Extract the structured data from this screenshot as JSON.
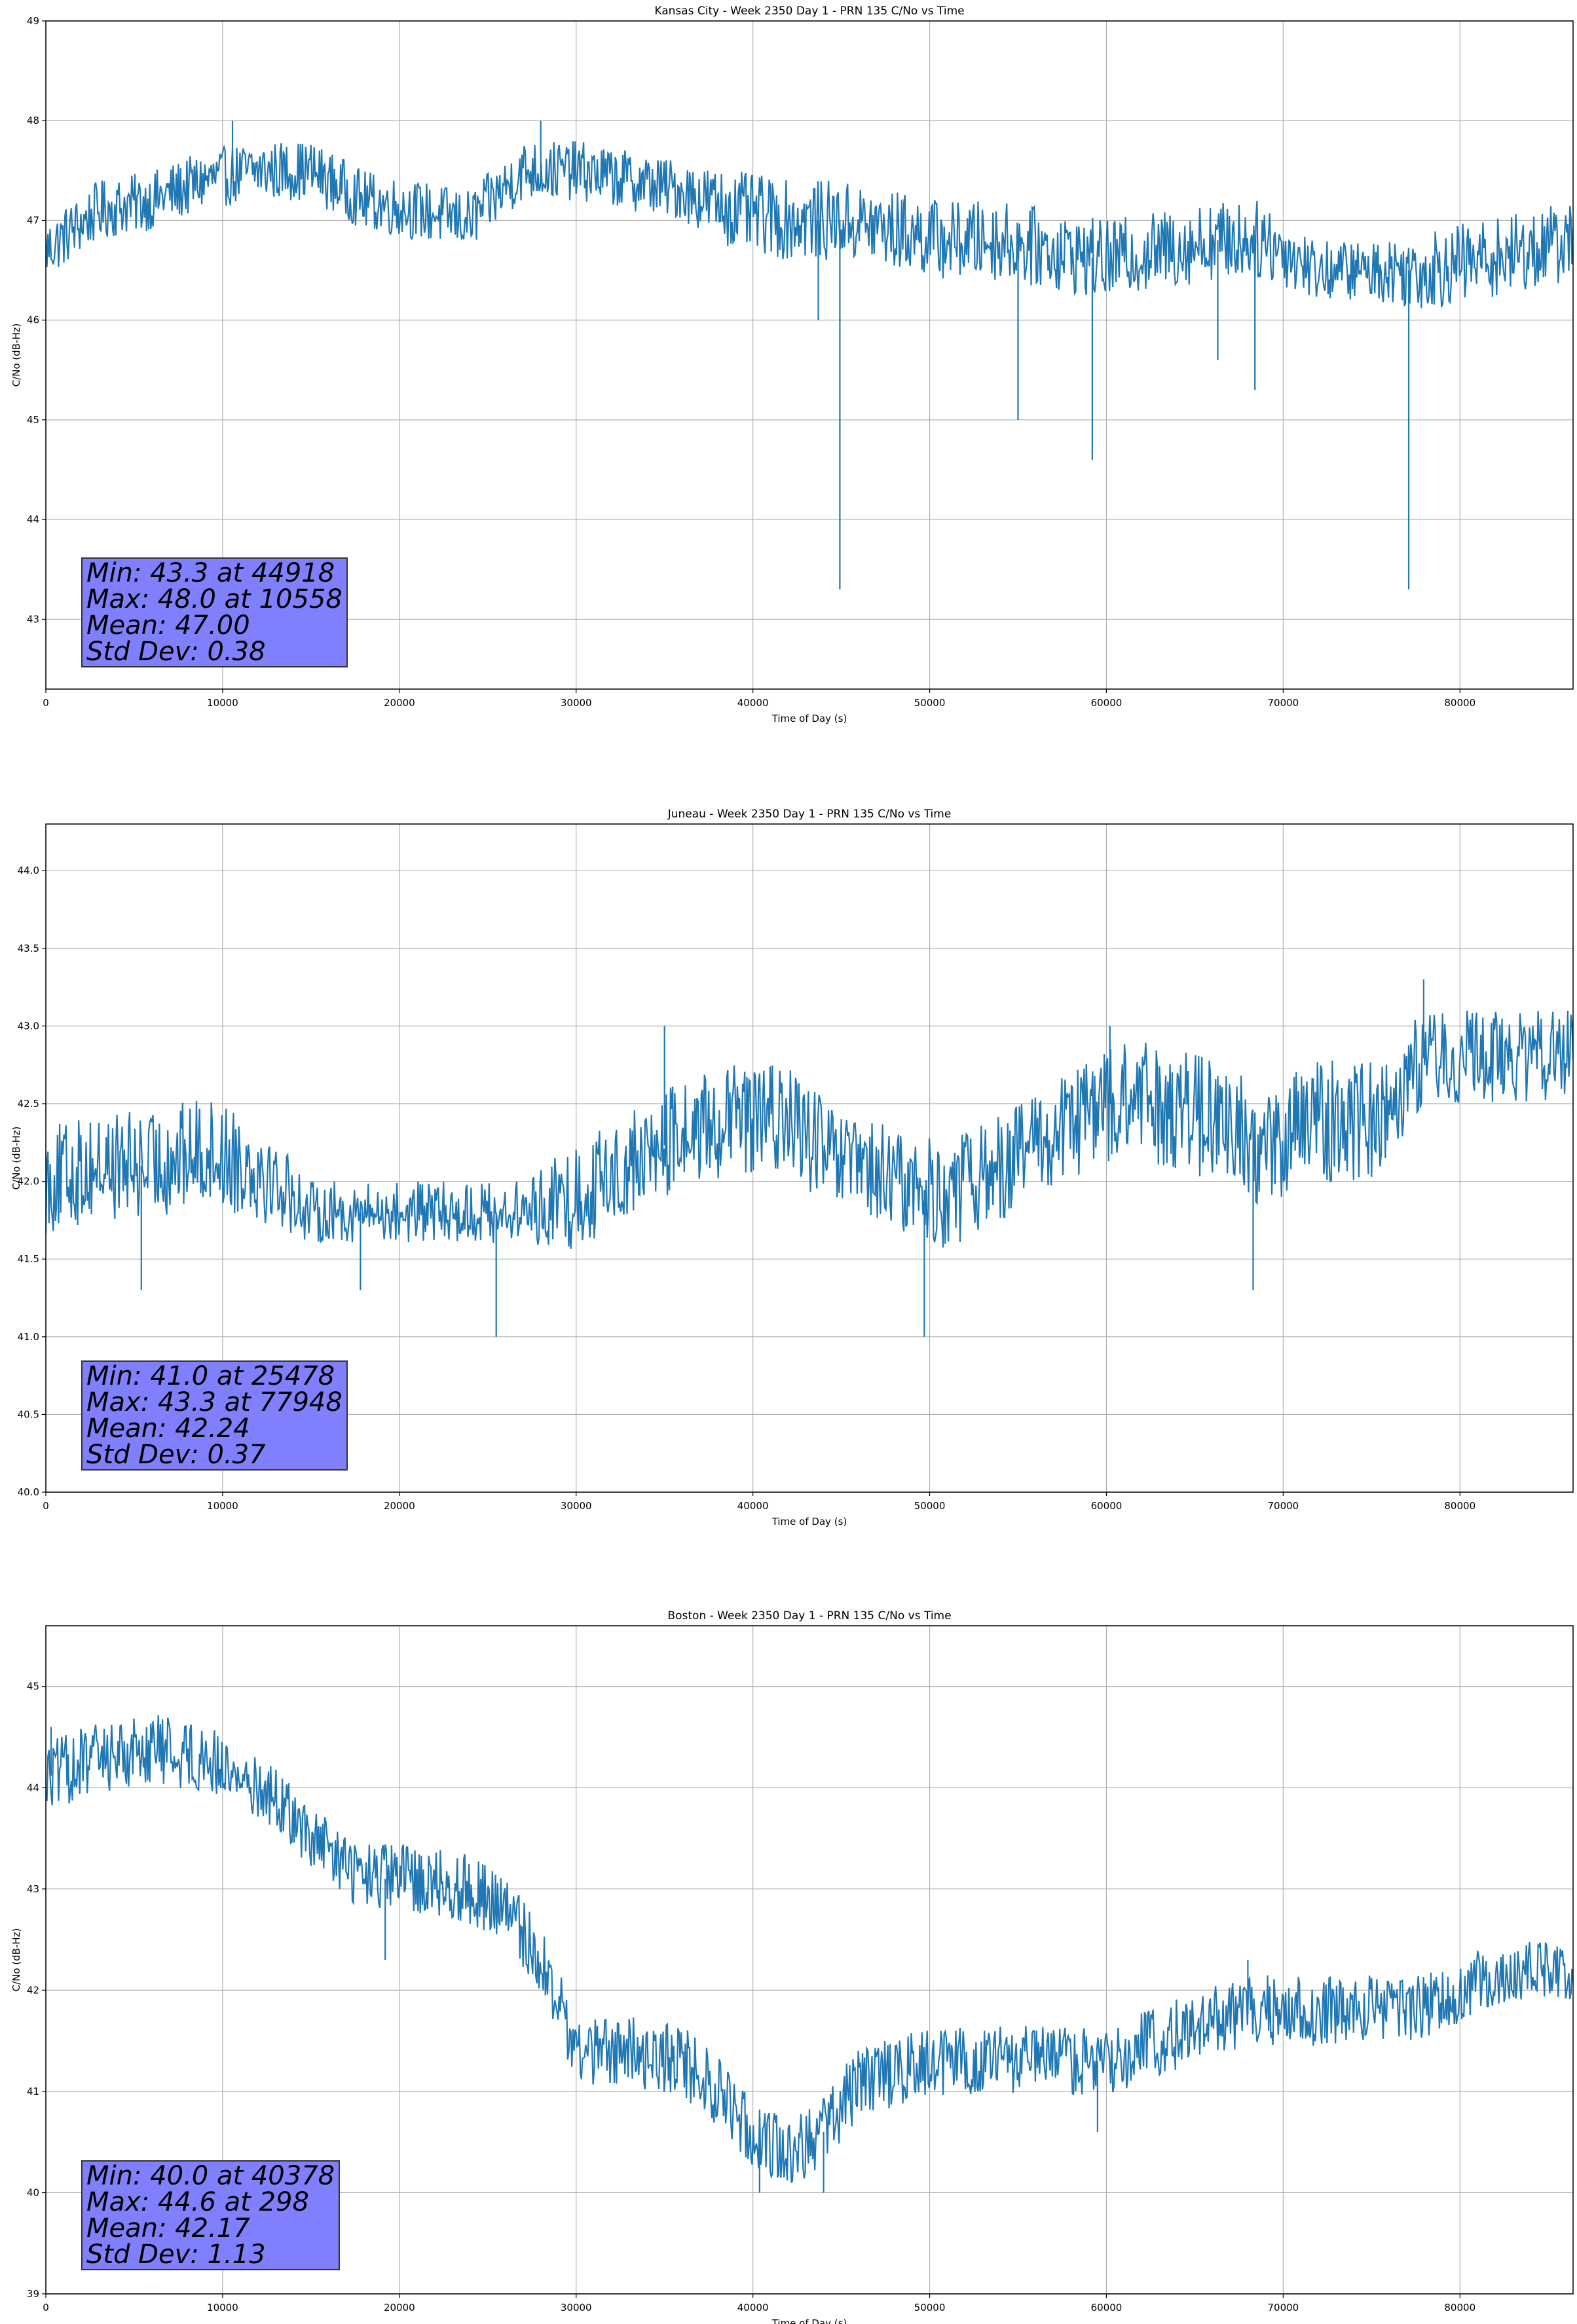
{
  "chart_data": [
    {
      "type": "line",
      "title": "Kansas City - Week 2350 Day 1 - PRN 135 C/No vs Time",
      "xlabel": "Time of Day (s)",
      "ylabel": "C/No (dB-Hz)",
      "xlim": [
        0,
        86400
      ],
      "ylim": [
        42.3,
        49.0
      ],
      "xticks": [
        0,
        10000,
        20000,
        30000,
        40000,
        50000,
        60000,
        70000,
        80000
      ],
      "yticks": [
        43,
        44,
        45,
        46,
        47,
        48,
        49
      ],
      "ytick_labels": [
        "43",
        "44",
        "45",
        "46",
        "47",
        "48",
        "49"
      ],
      "grid": true,
      "line_color": "#1f77b4",
      "stats_box_color": "#8080ff",
      "series": [
        {
          "x": [
            0,
            3000,
            6000,
            9000,
            12000,
            15000,
            18000,
            21000,
            24000,
            27000,
            30000,
            33000,
            36000,
            39000,
            42000,
            45000,
            48000,
            51000,
            54000,
            57000,
            60000,
            63000,
            66000,
            69000,
            72000,
            75000,
            78000,
            81000,
            84000,
            86400
          ],
          "base": [
            46.7,
            47.1,
            47.2,
            47.4,
            47.5,
            47.5,
            47.2,
            47.1,
            47.0,
            47.5,
            47.5,
            47.4,
            47.3,
            47.1,
            47.0,
            47.0,
            46.9,
            46.8,
            46.8,
            46.7,
            46.6,
            46.7,
            46.8,
            46.8,
            46.5,
            46.5,
            46.5,
            46.6,
            46.7,
            46.8
          ],
          "spread": [
            0.3,
            0.3,
            0.3,
            0.3,
            0.3,
            0.3,
            0.3,
            0.3,
            0.3,
            0.3,
            0.3,
            0.3,
            0.3,
            0.4,
            0.4,
            0.4,
            0.4,
            0.4,
            0.4,
            0.4,
            0.4,
            0.4,
            0.4,
            0.4,
            0.3,
            0.3,
            0.4,
            0.4,
            0.4,
            0.4
          ],
          "spikes": [
            [
              44918,
              43.3
            ],
            [
              77100,
              43.3
            ],
            [
              55000,
              45.0
            ],
            [
              59200,
              44.6
            ],
            [
              66300,
              45.6
            ],
            [
              68400,
              45.3
            ],
            [
              43700,
              46.0
            ],
            [
              10558,
              48.0
            ],
            [
              28000,
              48.0
            ]
          ]
        }
      ],
      "stats": [
        "Min: 43.3 at 44918",
        "Max: 48.0 at 10558",
        "Mean: 47.00",
        "Std Dev: 0.38"
      ]
    },
    {
      "type": "line",
      "title": "Juneau - Week 2350 Day 1 - PRN 135 C/No vs Time",
      "xlabel": "Time of Day (s)",
      "ylabel": "C/No (dB-Hz)",
      "xlim": [
        0,
        86400
      ],
      "ylim": [
        40.0,
        44.3
      ],
      "xticks": [
        0,
        10000,
        20000,
        30000,
        40000,
        50000,
        60000,
        70000,
        80000
      ],
      "yticks": [
        40.0,
        40.5,
        41.0,
        41.5,
        42.0,
        42.5,
        43.0,
        43.5,
        44.0
      ],
      "ytick_labels": [
        "40.0",
        "40.5",
        "41.0",
        "41.5",
        "42.0",
        "42.5",
        "43.0",
        "43.5",
        "44.0"
      ],
      "grid": true,
      "line_color": "#1f77b4",
      "stats_box_color": "#8080ff",
      "series": [
        {
          "x": [
            0,
            3000,
            6000,
            9000,
            12000,
            15000,
            18000,
            21000,
            24000,
            27000,
            30000,
            33000,
            36000,
            39000,
            42000,
            45000,
            48000,
            51000,
            54000,
            57000,
            60000,
            63000,
            66000,
            69000,
            72000,
            75000,
            78000,
            81000,
            84000,
            86400
          ],
          "base": [
            42.0,
            42.1,
            42.1,
            42.2,
            42.1,
            41.8,
            41.8,
            41.8,
            41.8,
            41.8,
            41.9,
            42.1,
            42.3,
            42.4,
            42.4,
            42.1,
            42.0,
            41.9,
            42.1,
            42.3,
            42.5,
            42.5,
            42.4,
            42.2,
            42.4,
            42.4,
            42.8,
            42.8,
            42.8,
            42.8
          ],
          "spread": [
            0.35,
            0.35,
            0.35,
            0.35,
            0.35,
            0.2,
            0.2,
            0.2,
            0.2,
            0.2,
            0.35,
            0.35,
            0.35,
            0.35,
            0.35,
            0.35,
            0.35,
            0.35,
            0.35,
            0.35,
            0.4,
            0.4,
            0.4,
            0.4,
            0.4,
            0.4,
            0.3,
            0.3,
            0.3,
            0.3
          ],
          "spikes": [
            [
              25478,
              41.0
            ],
            [
              49700,
              41.0
            ],
            [
              5400,
              41.3
            ],
            [
              17800,
              41.3
            ],
            [
              68300,
              41.3
            ],
            [
              77948,
              43.3
            ],
            [
              35000,
              43.0
            ],
            [
              60200,
              43.0
            ]
          ]
        }
      ],
      "stats": [
        "Min: 41.0 at 25478",
        "Max: 43.3 at 77948",
        "Mean: 42.24",
        "Std Dev: 0.37"
      ]
    },
    {
      "type": "line",
      "title": "Boston - Week 2350 Day 1 - PRN 135 C/No vs Time",
      "xlabel": "Time of Day (s)",
      "ylabel": "C/No (dB-Hz)",
      "xlim": [
        0,
        86400
      ],
      "ylim": [
        39.0,
        45.6
      ],
      "xticks": [
        0,
        10000,
        20000,
        30000,
        40000,
        50000,
        60000,
        70000,
        80000
      ],
      "yticks": [
        39,
        40,
        41,
        42,
        43,
        44,
        45
      ],
      "ytick_labels": [
        "39",
        "40",
        "41",
        "42",
        "43",
        "44",
        "45"
      ],
      "grid": true,
      "line_color": "#1f77b4",
      "stats_box_color": "#8080ff",
      "series": [
        {
          "x": [
            0,
            3000,
            6000,
            9000,
            11000,
            13000,
            15000,
            18000,
            21000,
            24000,
            26000,
            28000,
            30000,
            33000,
            36000,
            38000,
            40000,
            42000,
            44000,
            46000,
            48000,
            51000,
            54000,
            57000,
            60000,
            63000,
            66000,
            69000,
            72000,
            75000,
            78000,
            81000,
            84000,
            86400
          ],
          "base": [
            44.1,
            44.3,
            44.4,
            44.3,
            44.1,
            43.9,
            43.5,
            43.1,
            43.1,
            43.0,
            42.8,
            42.3,
            41.4,
            41.4,
            41.3,
            41.0,
            40.6,
            40.4,
            40.6,
            41.1,
            41.2,
            41.3,
            41.3,
            41.3,
            41.3,
            41.5,
            41.7,
            41.8,
            41.8,
            41.8,
            41.8,
            42.1,
            42.2,
            42.2
          ],
          "spread": [
            0.35,
            0.35,
            0.35,
            0.35,
            0.3,
            0.3,
            0.3,
            0.35,
            0.35,
            0.35,
            0.35,
            0.35,
            0.35,
            0.35,
            0.35,
            0.35,
            0.35,
            0.35,
            0.35,
            0.35,
            0.35,
            0.35,
            0.35,
            0.35,
            0.35,
            0.35,
            0.35,
            0.35,
            0.35,
            0.35,
            0.35,
            0.3,
            0.3,
            0.3
          ],
          "spikes": [
            [
              40378,
              40.0
            ],
            [
              44000,
              40.0
            ],
            [
              298,
              44.6
            ],
            [
              59500,
              40.6
            ],
            [
              19200,
              42.3
            ],
            [
              68000,
              42.3
            ]
          ]
        }
      ],
      "stats": [
        "Min: 40.0 at 40378",
        "Max: 44.6 at 298",
        "Mean: 42.17",
        "Std Dev: 1.13"
      ]
    }
  ]
}
